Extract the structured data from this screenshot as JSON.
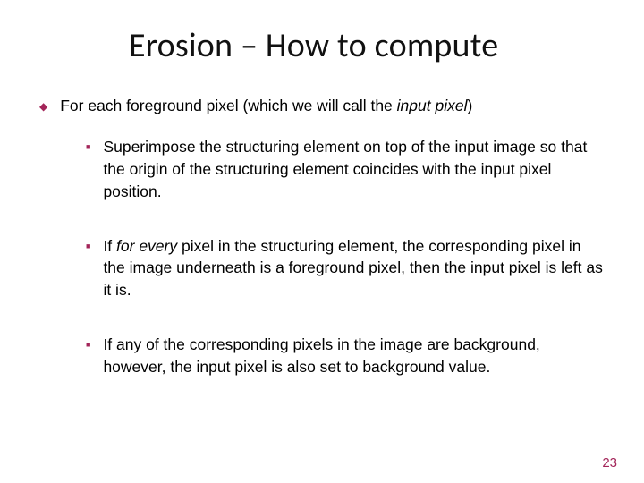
{
  "title": "Erosion – How to compute",
  "level1": {
    "prefix": "For each foreground pixel (which we will call the ",
    "italic": "input pixel",
    "suffix": ")"
  },
  "sub": [
    {
      "text": "Superimpose the structuring element on top of the input image so that the origin of the structuring element coincides with the input pixel position."
    },
    {
      "prefix": "If ",
      "italic": "for every",
      "suffix": " pixel in the structuring element, the corresponding pixel in the image underneath is a foreground pixel, then the input pixel is left as it is."
    },
    {
      "text": "If any of the corresponding pixels in the image are background, however, the input pixel is also set to background value."
    }
  ],
  "page_number": "23",
  "colors": {
    "accent": "#a32559",
    "text": "#000000",
    "bg": "#ffffff"
  },
  "fonts": {
    "title_pt": 38,
    "body_pt": 17.5
  }
}
